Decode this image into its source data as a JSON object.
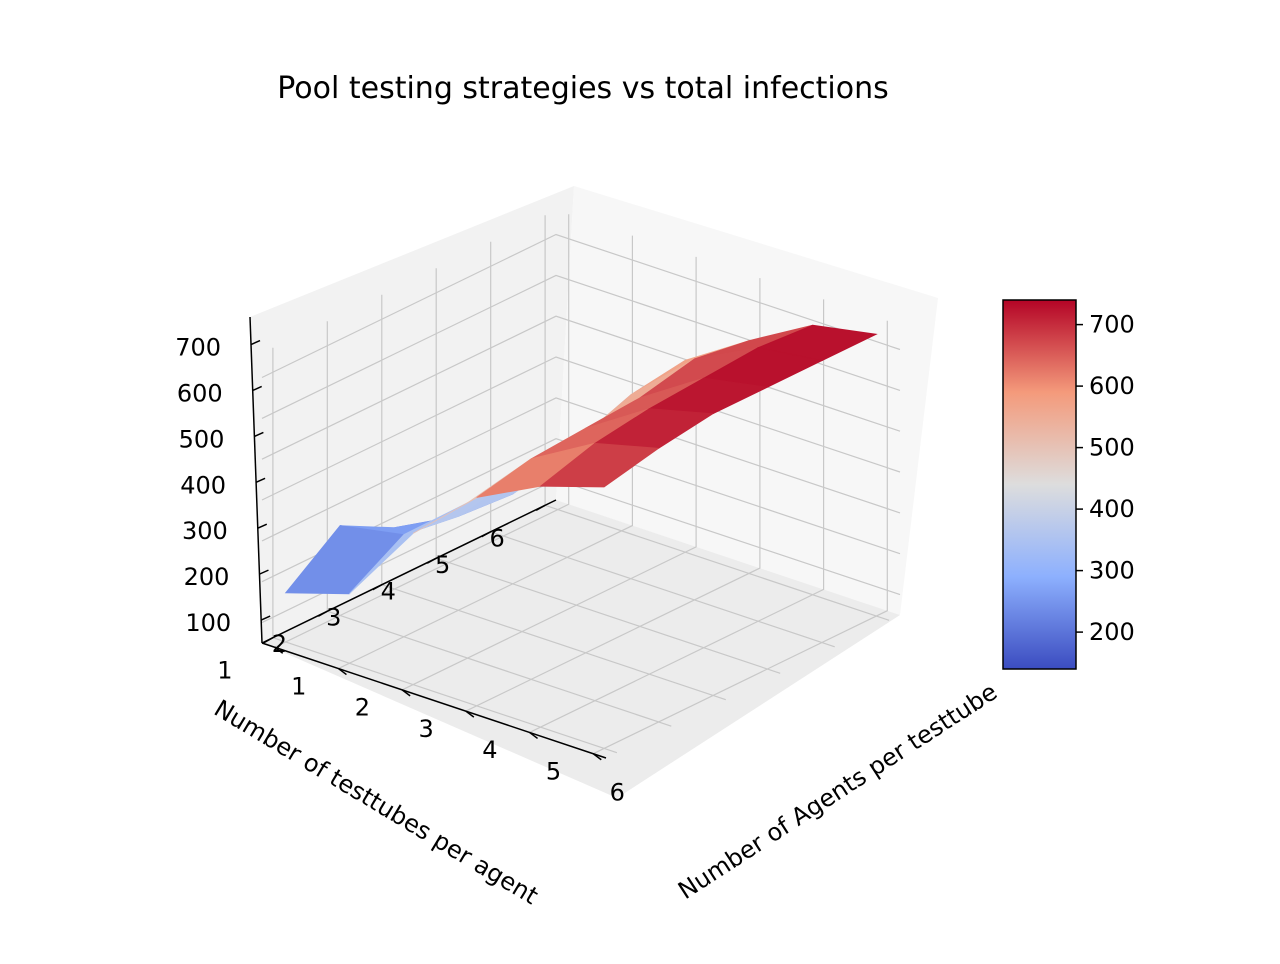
{
  "chart_data": {
    "type": "surface3d",
    "title": "Pool testing strategies vs total infections",
    "xlabel": "Number of Agents per testtube",
    "ylabel": "Number of testtubes per agent",
    "zlabel": "",
    "x": [
      1,
      2,
      3,
      4,
      5,
      6
    ],
    "y": [
      1,
      2,
      3,
      4,
      5,
      6
    ],
    "x_ticks": [
      "1",
      "2",
      "3",
      "4",
      "5",
      "6"
    ],
    "y_ticks": [
      "1",
      "2",
      "3",
      "4",
      "5",
      "6"
    ],
    "z_ticks": [
      "100",
      "200",
      "300",
      "400",
      "500",
      "600",
      "700"
    ],
    "z_grid": [
      [
        170,
        220,
        420,
        560,
        640,
        690
      ],
      [
        270,
        300,
        430,
        590,
        680,
        720
      ],
      [
        200,
        280,
        440,
        600,
        700,
        740
      ],
      [
        160,
        270,
        450,
        610,
        710,
        740
      ],
      [
        150,
        300,
        500,
        640,
        720,
        740
      ],
      [
        140,
        350,
        520,
        620,
        710,
        740
      ]
    ],
    "z_grid_note_rows": "y",
    "zlim": [
      50,
      760
    ],
    "colormap": "coolwarm",
    "colorbar": {
      "min": 140,
      "max": 740,
      "ticks": [
        "200",
        "300",
        "400",
        "500",
        "600",
        "700"
      ]
    },
    "grid": true
  }
}
